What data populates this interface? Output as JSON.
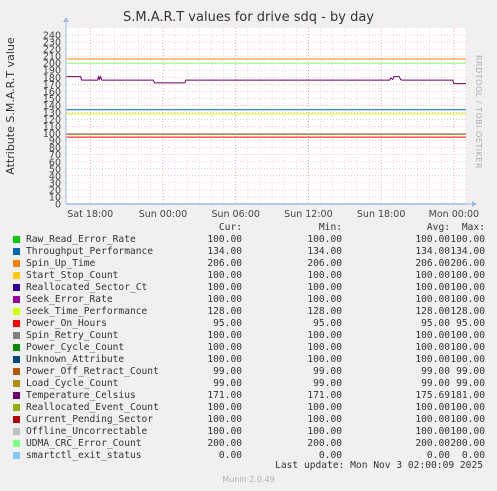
{
  "title": "S.M.A.R.T values for drive sdq - by day",
  "side_label": "RRDTOOL / TOBI OETIKER",
  "legend_header": {
    "cur": "Cur:",
    "min": "Min:",
    "avg": "Avg:",
    "max": "Max:"
  },
  "last_update": "Last update: Mon Nov  3 02:00:09 2025",
  "footer": "Munin 2.0.49",
  "legend": [
    {
      "name": "Raw_Read_Error_Rate",
      "color": "#00cc00",
      "cur": "100.00",
      "min": "100.00",
      "avg": "100.00",
      "max": "100.00"
    },
    {
      "name": "Throughput_Performance",
      "color": "#0066b3",
      "cur": "134.00",
      "min": "134.00",
      "avg": "134.00",
      "max": "134.00"
    },
    {
      "name": "Spin_Up_Time",
      "color": "#ff8000",
      "cur": "206.00",
      "min": "206.00",
      "avg": "206.00",
      "max": "206.00"
    },
    {
      "name": "Start_Stop_Count",
      "color": "#ffcc00",
      "cur": "100.00",
      "min": "100.00",
      "avg": "100.00",
      "max": "100.00"
    },
    {
      "name": "Reallocated_Sector_Ct",
      "color": "#330099",
      "cur": "100.00",
      "min": "100.00",
      "avg": "100.00",
      "max": "100.00"
    },
    {
      "name": "Seek_Error_Rate",
      "color": "#990099",
      "cur": "100.00",
      "min": "100.00",
      "avg": "100.00",
      "max": "100.00"
    },
    {
      "name": "Seek_Time_Performance",
      "color": "#ccff00",
      "cur": "128.00",
      "min": "128.00",
      "avg": "128.00",
      "max": "128.00"
    },
    {
      "name": "Power_On_Hours",
      "color": "#ff0000",
      "cur": "95.00",
      "min": "95.00",
      "avg": "95.00",
      "max": "95.00"
    },
    {
      "name": "Spin_Retry_Count",
      "color": "#808080",
      "cur": "100.00",
      "min": "100.00",
      "avg": "100.00",
      "max": "100.00"
    },
    {
      "name": "Power_Cycle_Count",
      "color": "#008f00",
      "cur": "100.00",
      "min": "100.00",
      "avg": "100.00",
      "max": "100.00"
    },
    {
      "name": "Unknown_Attribute",
      "color": "#00487d",
      "cur": "100.00",
      "min": "100.00",
      "avg": "100.00",
      "max": "100.00"
    },
    {
      "name": "Power_Off_Retract_Count",
      "color": "#b35a00",
      "cur": "99.00",
      "min": "99.00",
      "avg": "99.00",
      "max": "99.00"
    },
    {
      "name": "Load_Cycle_Count",
      "color": "#b38f00",
      "cur": "99.00",
      "min": "99.00",
      "avg": "99.00",
      "max": "99.00"
    },
    {
      "name": "Temperature_Celsius",
      "color": "#6b006b",
      "cur": "171.00",
      "min": "171.00",
      "avg": "175.69",
      "max": "181.00"
    },
    {
      "name": "Reallocated_Event_Count",
      "color": "#8fb300",
      "cur": "100.00",
      "min": "100.00",
      "avg": "100.00",
      "max": "100.00"
    },
    {
      "name": "Current_Pending_Sector",
      "color": "#b30000",
      "cur": "100.00",
      "min": "100.00",
      "avg": "100.00",
      "max": "100.00"
    },
    {
      "name": "Offline_Uncorrectable",
      "color": "#bebebe",
      "cur": "100.00",
      "min": "100.00",
      "avg": "100.00",
      "max": "100.00"
    },
    {
      "name": "UDMA_CRC_Error_Count",
      "color": "#80ff80",
      "cur": "200.00",
      "min": "200.00",
      "avg": "200.00",
      "max": "200.00"
    },
    {
      "name": "smartctl_exit_status",
      "color": "#80c9ff",
      "cur": "0.00",
      "min": "0.00",
      "avg": "0.00",
      "max": "0.00"
    }
  ],
  "chart_data": {
    "type": "line",
    "title": "S.M.A.R.T values for drive sdq - by day",
    "ylabel": "Attribute S.M.A.R.T value",
    "xlabel": "",
    "ylim": [
      0,
      250
    ],
    "yticks": [
      0,
      10,
      20,
      30,
      40,
      50,
      60,
      70,
      80,
      90,
      100,
      110,
      120,
      130,
      140,
      150,
      160,
      170,
      180,
      190,
      200,
      210,
      220,
      230,
      240
    ],
    "x_range_hours": [
      0,
      33
    ],
    "x_ticks": [
      {
        "hour": 2,
        "label": "Sat 18:00"
      },
      {
        "hour": 8,
        "label": "Sun 00:00"
      },
      {
        "hour": 14,
        "label": "Sun 06:00"
      },
      {
        "hour": 20,
        "label": "Sun 12:00"
      },
      {
        "hour": 26,
        "label": "Sun 18:00"
      },
      {
        "hour": 32,
        "label": "Mon 00:00"
      }
    ],
    "grid": true,
    "series": [
      {
        "name": "Raw_Read_Error_Rate",
        "color": "#00cc00",
        "constant": 100
      },
      {
        "name": "Throughput_Performance",
        "color": "#0066b3",
        "constant": 134
      },
      {
        "name": "Spin_Up_Time",
        "color": "#ff8000",
        "constant": 206
      },
      {
        "name": "Start_Stop_Count",
        "color": "#ffcc00",
        "constant": 100
      },
      {
        "name": "Reallocated_Sector_Ct",
        "color": "#330099",
        "constant": 100
      },
      {
        "name": "Seek_Error_Rate",
        "color": "#990099",
        "constant": 100
      },
      {
        "name": "Seek_Time_Performance",
        "color": "#ccff00",
        "constant": 128
      },
      {
        "name": "Power_On_Hours",
        "color": "#ff0000",
        "constant": 95
      },
      {
        "name": "Spin_Retry_Count",
        "color": "#808080",
        "constant": 100
      },
      {
        "name": "Power_Cycle_Count",
        "color": "#008f00",
        "constant": 100
      },
      {
        "name": "Unknown_Attribute",
        "color": "#00487d",
        "constant": 100
      },
      {
        "name": "Power_Off_Retract_Count",
        "color": "#b35a00",
        "constant": 99
      },
      {
        "name": "Load_Cycle_Count",
        "color": "#b38f00",
        "constant": 99
      },
      {
        "name": "Temperature_Celsius",
        "color": "#6b006b",
        "points": [
          [
            0,
            181
          ],
          [
            1.2,
            181
          ],
          [
            1.3,
            176
          ],
          [
            2.6,
            176
          ],
          [
            2.7,
            181
          ],
          [
            2.75,
            177
          ],
          [
            2.85,
            181
          ],
          [
            2.95,
            176
          ],
          [
            7.2,
            176
          ],
          [
            7.3,
            172
          ],
          [
            9.8,
            172
          ],
          [
            9.9,
            176
          ],
          [
            26.7,
            176
          ],
          [
            26.8,
            179
          ],
          [
            26.95,
            177
          ],
          [
            27.05,
            181
          ],
          [
            27.5,
            181
          ],
          [
            27.6,
            177
          ],
          [
            27.7,
            176
          ],
          [
            31.9,
            176
          ],
          [
            32.0,
            171
          ],
          [
            33,
            171
          ]
        ]
      },
      {
        "name": "Reallocated_Event_Count",
        "color": "#8fb300",
        "constant": 100
      },
      {
        "name": "Current_Pending_Sector",
        "color": "#b30000",
        "constant": 100
      },
      {
        "name": "Offline_Uncorrectable",
        "color": "#bebebe",
        "constant": 100
      },
      {
        "name": "UDMA_CRC_Error_Count",
        "color": "#80ff80",
        "constant": 200
      },
      {
        "name": "smartctl_exit_status",
        "color": "#80c9ff",
        "constant": 0
      }
    ]
  }
}
